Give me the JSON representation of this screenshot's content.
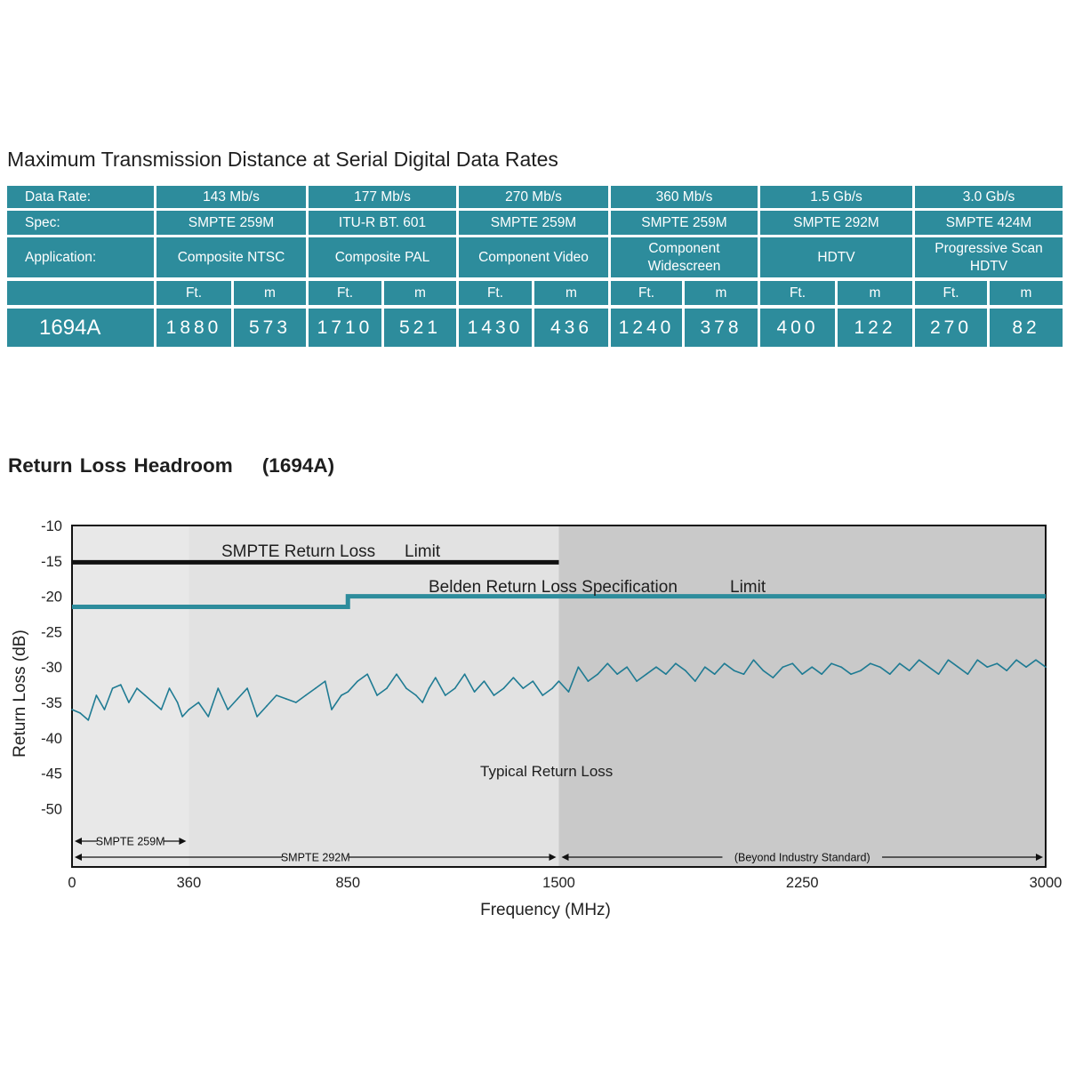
{
  "table": {
    "title": "Maximum Transmission Distance at Serial Digital Data Rates",
    "row_headers": {
      "data_rate": "Data Rate:",
      "spec": "Spec:",
      "application": "Application:"
    },
    "product": "1694A",
    "columns": [
      {
        "data_rate": "143 Mb/s",
        "spec": "SMPTE 259M",
        "application": [
          "Composite NTSC"
        ],
        "ft_label": "Ft.",
        "m_label": "m",
        "ft": "1880",
        "m": "573"
      },
      {
        "data_rate": "177 Mb/s",
        "spec": "ITU-R BT. 601",
        "application": [
          "Composite PAL"
        ],
        "ft_label": "Ft.",
        "m_label": "m",
        "ft": "1710",
        "m": "521"
      },
      {
        "data_rate": "270 Mb/s",
        "spec": "SMPTE 259M",
        "application": [
          "Component Video"
        ],
        "ft_label": "Ft.",
        "m_label": "m",
        "ft": "1430",
        "m": "436"
      },
      {
        "data_rate": "360 Mb/s",
        "spec": "SMPTE 259M",
        "application": [
          "Component",
          "Widescreen"
        ],
        "ft_label": "Ft.",
        "m_label": "m",
        "ft": "1240",
        "m": "378"
      },
      {
        "data_rate": "1.5 Gb/s",
        "spec": "SMPTE 292M",
        "application": [
          "HDTV"
        ],
        "ft_label": "Ft.",
        "m_label": "m",
        "ft": "400",
        "m": "122"
      },
      {
        "data_rate": "3.0 Gb/s",
        "spec": "SMPTE 424M",
        "application": [
          "Progressive Scan",
          "HDTV"
        ],
        "ft_label": "Ft.",
        "m_label": "m",
        "ft": "270",
        "m": "82"
      }
    ],
    "colors": {
      "cell": "#2d8c9c",
      "text": "#ffffff"
    }
  },
  "chart_title": {
    "main": "Return Loss Headroom",
    "product": "(1694A)"
  },
  "chart_data": {
    "type": "line",
    "title": "Return Loss Headroom    (1694A)",
    "xlabel": "Frequency (MHz)",
    "ylabel": "Return Loss (dB)",
    "x_ticks": [
      "0",
      "360",
      "850",
      "1500",
      "2250",
      "3000"
    ],
    "y_ticks": [
      "-10",
      "-15",
      "-20",
      "-25",
      "-30",
      "-35",
      "-40",
      "-45",
      "-50"
    ],
    "xlim": [
      0,
      3000
    ],
    "ylim": [
      -58,
      -10
    ],
    "regions": [
      {
        "from": 0,
        "to": 360,
        "color": "#e8e8e8"
      },
      {
        "from": 360,
        "to": 1500,
        "color": "#e2e2e2"
      },
      {
        "from": 1500,
        "to": 3000,
        "color": "#c9c9c9"
      }
    ],
    "limit_lines": [
      {
        "label_parts": [
          "SMPTE Return Loss",
          "Limit"
        ],
        "color": "#111111",
        "points": [
          [
            0,
            -15.2
          ],
          [
            1500,
            -15.2
          ]
        ]
      },
      {
        "label_parts": [
          "Belden Return Loss Specification",
          "Limit"
        ],
        "color": "#2d8c9c",
        "points": [
          [
            0,
            -21.5
          ],
          [
            850,
            -21.5
          ],
          [
            850,
            -20
          ],
          [
            3000,
            -20
          ]
        ]
      }
    ],
    "series": [
      {
        "annotation": "Typical Return Loss",
        "color": "#1f7b93",
        "x": [
          0,
          25,
          50,
          75,
          100,
          125,
          150,
          175,
          200,
          225,
          250,
          275,
          300,
          325,
          340,
          360,
          390,
          420,
          450,
          480,
          510,
          540,
          570,
          600,
          630,
          660,
          690,
          720,
          750,
          780,
          800,
          830,
          850,
          880,
          910,
          940,
          970,
          1000,
          1030,
          1060,
          1080,
          1100,
          1120,
          1150,
          1180,
          1210,
          1240,
          1270,
          1300,
          1330,
          1360,
          1390,
          1420,
          1450,
          1480,
          1500,
          1530,
          1560,
          1590,
          1620,
          1650,
          1680,
          1710,
          1740,
          1770,
          1800,
          1830,
          1860,
          1890,
          1920,
          1950,
          1980,
          2010,
          2040,
          2070,
          2100,
          2130,
          2160,
          2190,
          2220,
          2250,
          2280,
          2310,
          2340,
          2370,
          2400,
          2430,
          2460,
          2490,
          2520,
          2550,
          2580,
          2610,
          2640,
          2670,
          2700,
          2730,
          2760,
          2790,
          2820,
          2850,
          2880,
          2910,
          2940,
          2970,
          3000
        ],
        "y": [
          -36,
          -36.5,
          -37.5,
          -34,
          -36,
          -33,
          -32.5,
          -35,
          -33,
          -34,
          -35,
          -36,
          -33,
          -35,
          -37,
          -36,
          -35,
          -37,
          -33,
          -36,
          -34.5,
          -33,
          -37,
          -35.5,
          -34,
          -34.5,
          -35,
          -34,
          -33,
          -32,
          -36,
          -34,
          -33.5,
          -32,
          -31,
          -34,
          -33,
          -31,
          -33,
          -34,
          -35,
          -33,
          -31.5,
          -34,
          -33,
          -31,
          -33.5,
          -32,
          -34,
          -33,
          -31.5,
          -33,
          -32,
          -34,
          -33,
          -32,
          -33.5,
          -30,
          -32,
          -31,
          -29.5,
          -31,
          -30,
          -32,
          -31,
          -30,
          -31,
          -29.5,
          -30.5,
          -32,
          -30,
          -31,
          -29.5,
          -30.5,
          -31,
          -29,
          -30.5,
          -31.5,
          -30,
          -29.5,
          -31,
          -30,
          -31,
          -29.5,
          -30,
          -31,
          -30.5,
          -29.5,
          -30,
          -31,
          -29.5,
          -30.5,
          -29,
          -30,
          -31,
          -29,
          -30,
          -31,
          -29,
          -30,
          -29.5,
          -30.5,
          -29,
          -30,
          -29,
          -30
        ]
      }
    ],
    "bands": [
      {
        "label": "SMPTE 259M",
        "from": 0,
        "to": 360,
        "row": 1
      },
      {
        "label": "SMPTE 292M",
        "from": 0,
        "to": 1500,
        "row": 2
      },
      {
        "label": "(Beyond Industry Standard)",
        "from": 1500,
        "to": 3000,
        "row": 2
      }
    ],
    "grid": false,
    "legend": "none"
  }
}
